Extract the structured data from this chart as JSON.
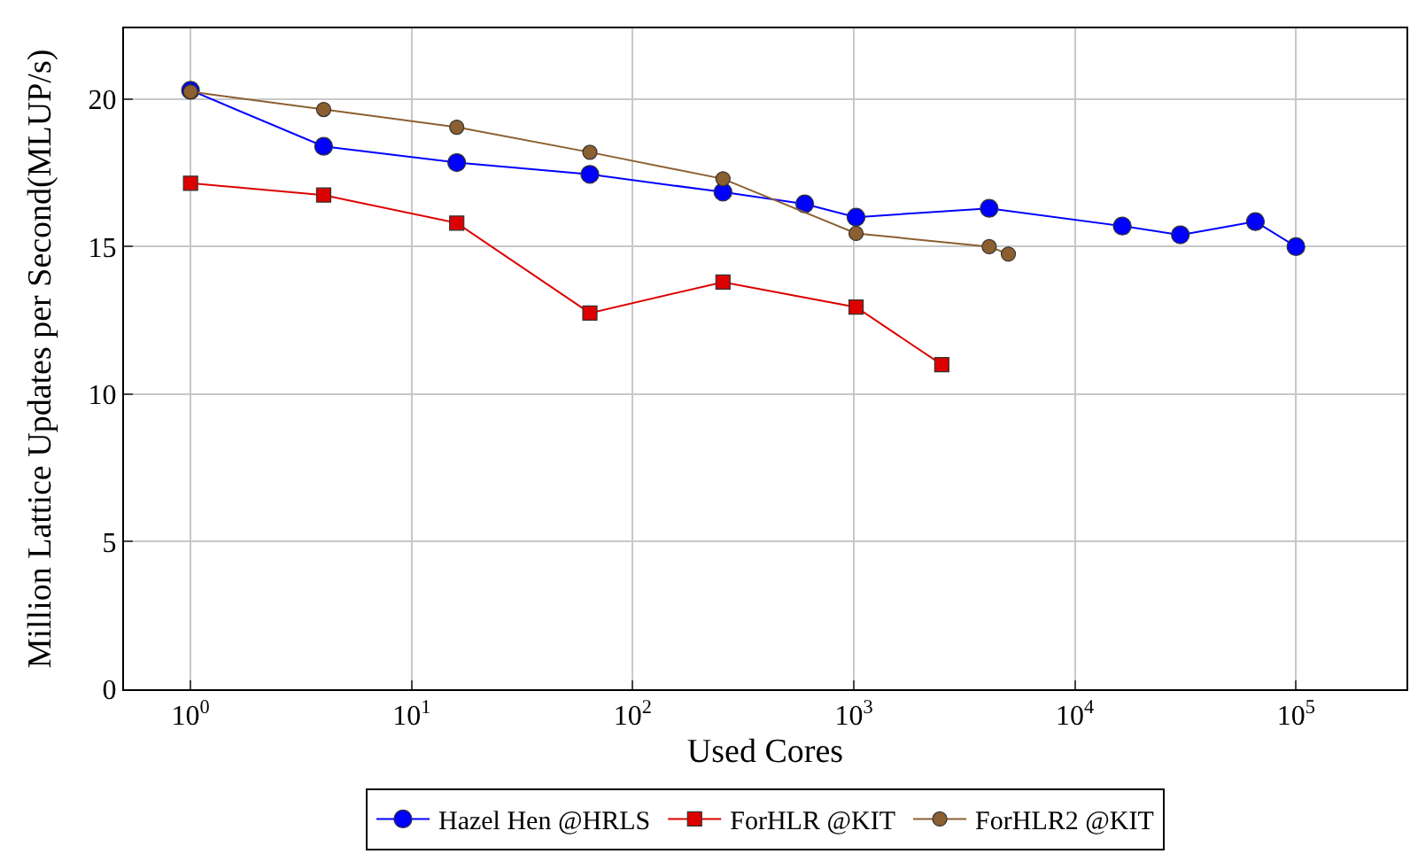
{
  "chart_data": {
    "type": "line",
    "xlabel": "Used Cores",
    "ylabel": "Million Lattice Updates per Second(MLUP/s)",
    "log": "x",
    "xlim": [
      0.5,
      316000
    ],
    "ylim": [
      0,
      22.4
    ],
    "xticks": [
      {
        "value": 1,
        "label": "10$^{0}$"
      },
      {
        "value": 10,
        "label": "10$^{1}$"
      },
      {
        "value": 100,
        "label": "10$^{2}$"
      },
      {
        "value": 1000,
        "label": "10$^{3}$"
      },
      {
        "value": 10000,
        "label": "10$^{4}$"
      },
      {
        "value": 100000,
        "label": "10$^{5}$"
      }
    ],
    "yticks": [
      0,
      5,
      10,
      15,
      20
    ],
    "grid": true,
    "legend": "bottom",
    "series": [
      {
        "name": "Hazel Hen @HRLS",
        "color": "#0000ff",
        "marker": "circle",
        "x": [
          1,
          4,
          16,
          64,
          256,
          600,
          1024,
          4096,
          16384,
          30000,
          65536,
          100000
        ],
        "values": [
          20.3,
          18.4,
          17.85,
          17.45,
          16.85,
          16.45,
          16.0,
          16.3,
          15.7,
          15.4,
          15.85,
          15.0
        ]
      },
      {
        "name": "ForHLR @KIT",
        "color": "#dd0000",
        "marker": "square",
        "x": [
          1,
          4,
          16,
          64,
          256,
          1024,
          2500
        ],
        "values": [
          17.15,
          16.75,
          15.8,
          12.75,
          13.8,
          12.95,
          11.0
        ]
      },
      {
        "name": "ForHLR2 @KIT",
        "color": "#8c5f30",
        "marker": "circle",
        "x": [
          1,
          4,
          16,
          64,
          256,
          1024,
          4096,
          5000
        ],
        "values": [
          20.25,
          19.65,
          19.05,
          18.2,
          17.3,
          15.45,
          15.0,
          14.75
        ]
      }
    ]
  }
}
